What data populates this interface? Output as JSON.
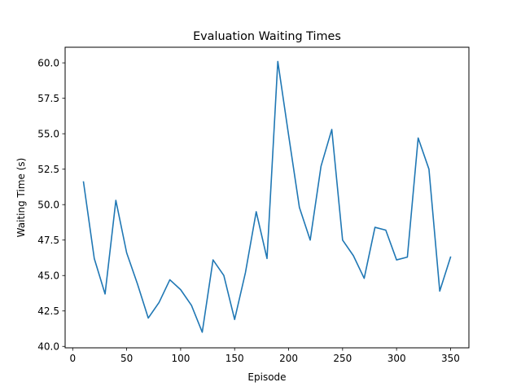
{
  "chart_data": {
    "type": "line",
    "title": "Evaluation Waiting Times",
    "xlabel": "Episode",
    "ylabel": "Waiting Time (s)",
    "xlim": [
      -7,
      367
    ],
    "ylim": [
      39.9,
      61.1
    ],
    "xticks": [
      0,
      50,
      100,
      150,
      200,
      250,
      300,
      350
    ],
    "yticks": [
      40.0,
      42.5,
      45.0,
      47.5,
      50.0,
      52.5,
      55.0,
      57.5,
      60.0
    ],
    "grid": false,
    "series": [
      {
        "color": "#1f77b4",
        "x": [
          10,
          20,
          30,
          40,
          50,
          60,
          70,
          80,
          90,
          100,
          110,
          120,
          130,
          140,
          150,
          160,
          170,
          180,
          190,
          200,
          210,
          220,
          230,
          240,
          250,
          260,
          270,
          280,
          290,
          300,
          310,
          320,
          330,
          340,
          350
        ],
        "values": [
          51.6,
          46.2,
          43.7,
          50.3,
          46.6,
          44.4,
          42.0,
          43.1,
          44.7,
          44.0,
          42.9,
          41.0,
          46.1,
          45.0,
          41.9,
          45.2,
          49.5,
          46.2,
          60.1,
          54.9,
          49.8,
          47.5,
          52.7,
          55.3,
          47.5,
          46.4,
          44.8,
          48.4,
          48.2,
          46.1,
          46.3,
          54.7,
          52.5,
          43.9,
          46.3
        ]
      }
    ]
  }
}
